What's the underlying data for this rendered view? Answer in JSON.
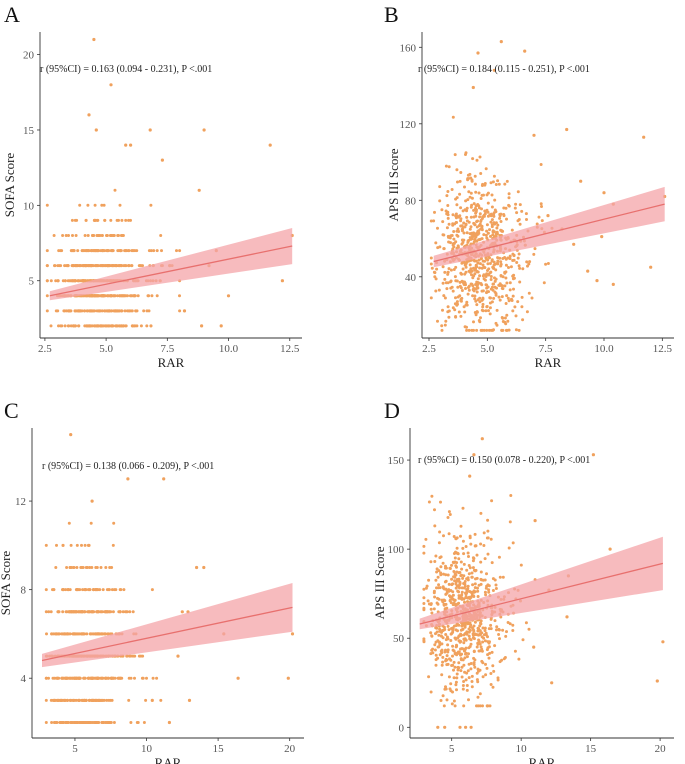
{
  "figure": {
    "point_color": "#f0a15d",
    "line_color": "#e8706e",
    "band_color": "#f4a4a8"
  },
  "chart_data": [
    {
      "panel": "A",
      "type": "scatter",
      "xlabel": "RAR",
      "ylabel": "SOFA Score",
      "annotation": "r (95%CI) = 0.163 (0.094 - 0.231), P <.001",
      "xlim": [
        2.3,
        13.0
      ],
      "ylim": [
        1.2,
        21.5
      ],
      "x_ticks": [
        2.5,
        5.0,
        7.5,
        10.0,
        12.5
      ],
      "x_tick_labels": [
        "2.5",
        "5.0",
        "7.5",
        "10.0",
        "12.5"
      ],
      "y_ticks": [
        5,
        10,
        15,
        20
      ],
      "y_tick_labels": [
        "5",
        "10",
        "15",
        "20"
      ],
      "cloud": {
        "n": 700,
        "x_min": 2.6,
        "x_center": 4.3,
        "x_spread": 1.2,
        "x_max": 8.0,
        "y_min": 2,
        "y_center": 5,
        "y_spread": 2.2,
        "y_max": 12,
        "y_step": 1
      },
      "points": [
        {
          "x": 4.5,
          "y": 21
        },
        {
          "x": 5.2,
          "y": 18
        },
        {
          "x": 4.3,
          "y": 16
        },
        {
          "x": 4.6,
          "y": 15
        },
        {
          "x": 6.0,
          "y": 14
        },
        {
          "x": 5.8,
          "y": 14
        },
        {
          "x": 6.8,
          "y": 15
        },
        {
          "x": 9.0,
          "y": 15
        },
        {
          "x": 11.7,
          "y": 14
        },
        {
          "x": 7.3,
          "y": 13
        },
        {
          "x": 8.8,
          "y": 11
        },
        {
          "x": 9.2,
          "y": 6
        },
        {
          "x": 9.5,
          "y": 7
        },
        {
          "x": 10.0,
          "y": 4
        },
        {
          "x": 12.2,
          "y": 5
        },
        {
          "x": 12.6,
          "y": 8
        },
        {
          "x": 8.2,
          "y": 3
        },
        {
          "x": 8.9,
          "y": 2
        },
        {
          "x": 9.7,
          "y": 2
        },
        {
          "x": 7.6,
          "y": 6
        }
      ],
      "fit": {
        "x": [
          2.7,
          12.6
        ],
        "y": [
          4.0,
          7.3
        ],
        "lower": [
          3.7,
          6.1
        ],
        "upper": [
          4.3,
          8.5
        ]
      }
    },
    {
      "panel": "B",
      "type": "scatter",
      "xlabel": "RAR",
      "ylabel": "APS III Score",
      "annotation": "r (95%CI) = 0.184 (0.115 - 0.251), P <.001",
      "xlim": [
        2.2,
        13.0
      ],
      "ylim": [
        8,
        168
      ],
      "x_ticks": [
        2.5,
        5.0,
        7.5,
        10.0,
        12.5
      ],
      "x_tick_labels": [
        "2.5",
        "5.0",
        "7.5",
        "10.0",
        "12.5"
      ],
      "y_ticks": [
        40,
        80,
        120,
        160
      ],
      "y_tick_labels": [
        "40",
        "80",
        "120",
        "160"
      ],
      "cloud": {
        "n": 800,
        "x_min": 2.6,
        "x_center": 4.3,
        "x_spread": 1.2,
        "x_max": 8.0,
        "y_min": 12,
        "y_center": 52,
        "y_spread": 20,
        "y_max": 125,
        "y_step": 0
      },
      "points": [
        {
          "x": 5.6,
          "y": 163
        },
        {
          "x": 6.6,
          "y": 158
        },
        {
          "x": 4.6,
          "y": 157
        },
        {
          "x": 5.3,
          "y": 148
        },
        {
          "x": 4.4,
          "y": 139
        },
        {
          "x": 8.4,
          "y": 117
        },
        {
          "x": 11.7,
          "y": 113
        },
        {
          "x": 7.0,
          "y": 114
        },
        {
          "x": 9.0,
          "y": 90
        },
        {
          "x": 10.0,
          "y": 84
        },
        {
          "x": 10.4,
          "y": 78
        },
        {
          "x": 12.6,
          "y": 82
        },
        {
          "x": 12.0,
          "y": 45
        },
        {
          "x": 10.4,
          "y": 36
        },
        {
          "x": 9.7,
          "y": 38
        },
        {
          "x": 9.3,
          "y": 43
        },
        {
          "x": 8.7,
          "y": 57
        },
        {
          "x": 9.9,
          "y": 61
        },
        {
          "x": 8.2,
          "y": 65
        },
        {
          "x": 7.6,
          "y": 72
        }
      ],
      "fit": {
        "x": [
          2.7,
          12.6
        ],
        "y": [
          48,
          78
        ],
        "lower": [
          45,
          69
        ],
        "upper": [
          51,
          87
        ]
      }
    },
    {
      "panel": "C",
      "type": "scatter",
      "xlabel": "RAR",
      "ylabel": "SOFA Score",
      "annotation": "r (95%CI) = 0.138 (0.066 - 0.209), P <.001",
      "xlim": [
        2.0,
        21.0
      ],
      "ylim": [
        1.3,
        15.3
      ],
      "x_ticks": [
        5,
        10,
        15,
        20
      ],
      "x_tick_labels": [
        "5",
        "10",
        "15",
        "20"
      ],
      "y_ticks": [
        4,
        8,
        12
      ],
      "y_tick_labels": [
        "4",
        "8",
        "12"
      ],
      "cloud": {
        "n": 700,
        "x_min": 3.0,
        "x_center": 5.3,
        "x_spread": 1.8,
        "x_max": 11.0,
        "y_min": 2,
        "y_center": 5,
        "y_spread": 2.2,
        "y_max": 11,
        "y_step": 1
      },
      "points": [
        {
          "x": 4.7,
          "y": 15
        },
        {
          "x": 8.7,
          "y": 13
        },
        {
          "x": 11.2,
          "y": 13
        },
        {
          "x": 6.2,
          "y": 12
        },
        {
          "x": 13.5,
          "y": 9
        },
        {
          "x": 14.0,
          "y": 9
        },
        {
          "x": 15.4,
          "y": 6
        },
        {
          "x": 16.4,
          "y": 4
        },
        {
          "x": 19.9,
          "y": 4
        },
        {
          "x": 20.2,
          "y": 6
        },
        {
          "x": 12.5,
          "y": 7
        },
        {
          "x": 12.9,
          "y": 7
        },
        {
          "x": 12.2,
          "y": 5
        },
        {
          "x": 13.0,
          "y": 3
        },
        {
          "x": 11.6,
          "y": 2
        },
        {
          "x": 10.4,
          "y": 3
        }
      ],
      "fit": {
        "x": [
          2.7,
          20.2
        ],
        "y": [
          4.8,
          7.2
        ],
        "lower": [
          4.5,
          6.1
        ],
        "upper": [
          5.1,
          8.3
        ]
      }
    },
    {
      "panel": "D",
      "type": "scatter",
      "xlabel": "RAR",
      "ylabel": "APS III Score",
      "annotation": "r (95%CI) = 0.150 (0.078 - 0.220), P <.001",
      "xlim": [
        2.0,
        21.0
      ],
      "ylim": [
        -6,
        168
      ],
      "x_ticks": [
        5,
        10,
        15,
        20
      ],
      "x_tick_labels": [
        "5",
        "10",
        "15",
        "20"
      ],
      "y_ticks": [
        0,
        50,
        100,
        150
      ],
      "y_tick_labels": [
        "0",
        "50",
        "100",
        "150"
      ],
      "cloud": {
        "n": 800,
        "x_min": 3.0,
        "x_center": 5.3,
        "x_spread": 1.8,
        "x_max": 11.0,
        "y_min": 12,
        "y_center": 62,
        "y_spread": 23,
        "y_max": 138,
        "y_step": 0
      },
      "points": [
        {
          "x": 7.2,
          "y": 162
        },
        {
          "x": 6.6,
          "y": 153
        },
        {
          "x": 15.2,
          "y": 153
        },
        {
          "x": 6.3,
          "y": 141
        },
        {
          "x": 11.0,
          "y": 116
        },
        {
          "x": 16.4,
          "y": 100
        },
        {
          "x": 13.4,
          "y": 85
        },
        {
          "x": 12.0,
          "y": 77
        },
        {
          "x": 13.3,
          "y": 62
        },
        {
          "x": 20.2,
          "y": 48
        },
        {
          "x": 19.8,
          "y": 26
        },
        {
          "x": 12.2,
          "y": 25
        },
        {
          "x": 10.9,
          "y": 45
        },
        {
          "x": 4.0,
          "y": 0
        },
        {
          "x": 4.5,
          "y": 0
        },
        {
          "x": 5.6,
          "y": 0
        },
        {
          "x": 6.4,
          "y": 0
        },
        {
          "x": 6.0,
          "y": 0
        }
      ],
      "fit": {
        "x": [
          2.7,
          20.2
        ],
        "y": [
          58,
          92
        ],
        "lower": [
          55,
          77
        ],
        "upper": [
          61,
          107
        ]
      }
    }
  ],
  "layout_names": [
    "A",
    "B",
    "C",
    "D"
  ]
}
